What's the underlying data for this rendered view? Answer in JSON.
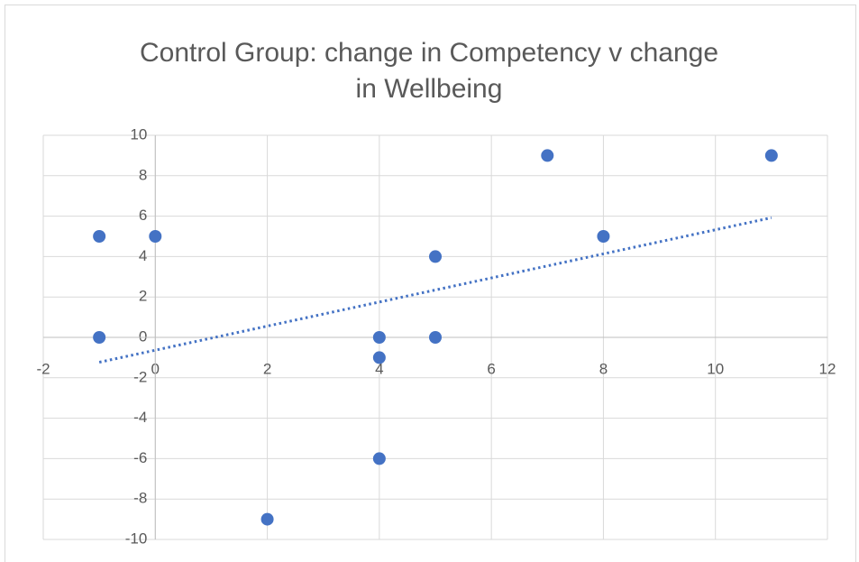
{
  "chart_data": {
    "type": "scatter",
    "title_lines": [
      "Control Group: change in Competency v change",
      "in Wellbeing"
    ],
    "x": [
      -1,
      -1,
      0,
      2,
      4,
      4,
      4,
      5,
      5,
      7,
      8,
      11
    ],
    "values": [
      5,
      0,
      5,
      -9,
      0,
      -1,
      -6,
      4,
      0,
      9,
      5,
      9
    ],
    "color": "#4472c4",
    "trendline": "linear",
    "xlim": [
      -2,
      12
    ],
    "xticks": [
      -2,
      0,
      2,
      4,
      6,
      8,
      10,
      12
    ],
    "ylim": [
      -10,
      10
    ],
    "yticks": [
      -10,
      -8,
      -6,
      -4,
      -2,
      0,
      2,
      4,
      6,
      8,
      10
    ],
    "grid": true
  }
}
